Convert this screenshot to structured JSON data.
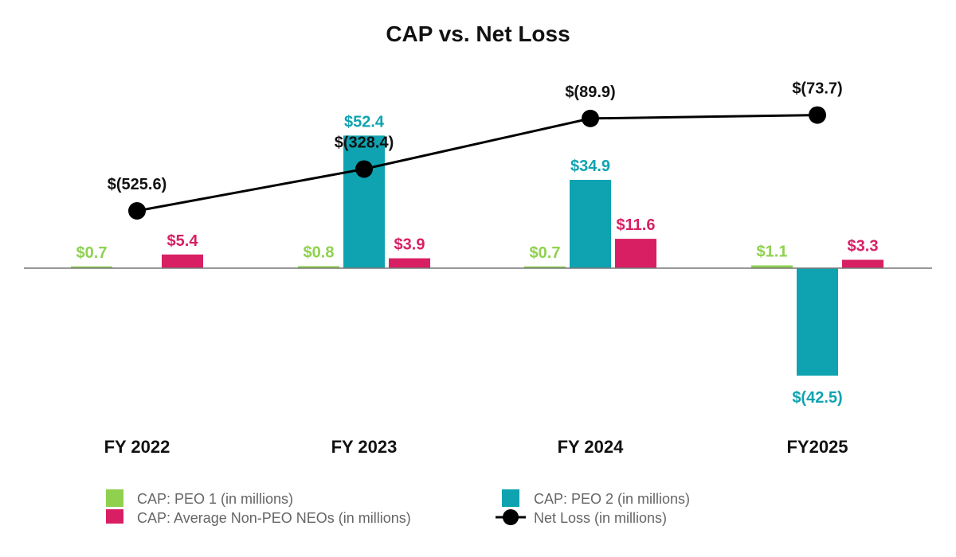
{
  "chart_data": {
    "type": "bar",
    "title": "CAP vs. Net Loss",
    "categories": [
      "FY 2022",
      "FY 2023",
      "FY 2024",
      "FY2025"
    ],
    "series": [
      {
        "name": "CAP: PEO 1 (in millions)",
        "color": "#8fd14f",
        "values": [
          0.7,
          0.8,
          0.7,
          1.1
        ],
        "labels": [
          "$0.7",
          "$0.8",
          "$0.7",
          "$1.1"
        ]
      },
      {
        "name": "CAP: PEO 2 (in millions)",
        "color": "#0fa3b1",
        "values": [
          null,
          52.4,
          34.9,
          -42.5
        ],
        "labels": [
          "",
          "$52.4",
          "$34.9",
          "$(42.5)"
        ]
      },
      {
        "name": "CAP: Average Non-PEO NEOs (in millions)",
        "color": "#d81f63",
        "values": [
          5.4,
          3.9,
          11.6,
          3.3
        ],
        "labels": [
          "$5.4",
          "$3.9",
          "$11.6",
          "$3.3"
        ]
      }
    ],
    "line_series": {
      "name": "Net Loss (in millions)",
      "color": "#000000",
      "values": [
        -525.6,
        -328.4,
        -89.9,
        -73.7
      ],
      "labels": [
        "$(525.6)",
        "$(328.4)",
        "$(89.9)",
        "$(73.7)"
      ],
      "ylim": [
        -900,
        0
      ]
    },
    "ylim": [
      -60,
      60
    ],
    "grid": false,
    "legend_position": "bottom"
  }
}
